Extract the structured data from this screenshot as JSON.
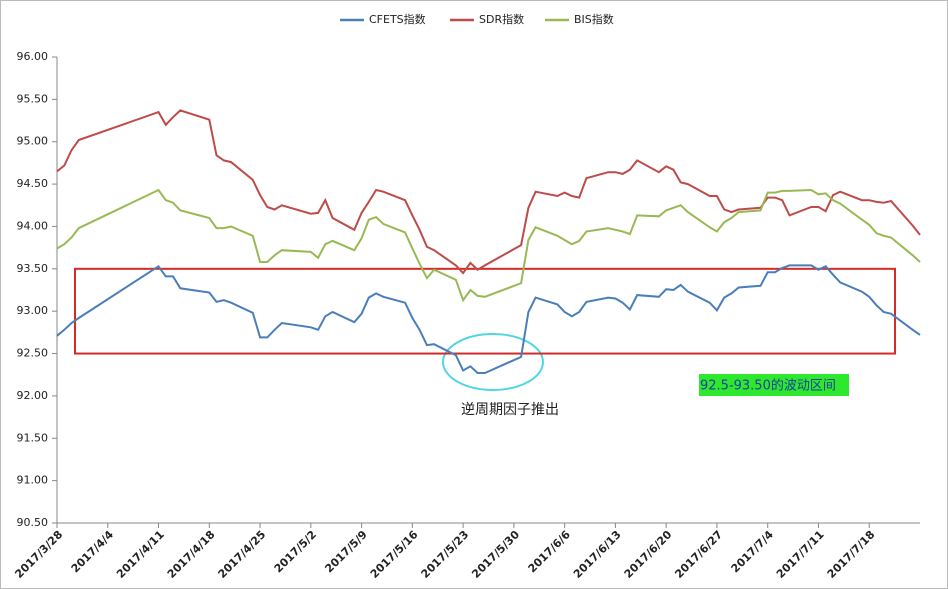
{
  "chart_data": {
    "type": "line",
    "x": [
      "2017/3/28",
      "2017/3/29",
      "2017/3/30",
      "2017/3/31",
      "2017/4/11",
      "2017/4/12",
      "2017/4/13",
      "2017/4/14",
      "2017/4/18",
      "2017/4/19",
      "2017/4/20",
      "2017/4/21",
      "2017/4/24",
      "2017/4/25",
      "2017/4/26",
      "2017/4/27",
      "2017/4/28",
      "2017/5/2",
      "2017/5/3",
      "2017/5/4",
      "2017/5/5",
      "2017/5/8",
      "2017/5/9",
      "2017/5/10",
      "2017/5/11",
      "2017/5/12",
      "2017/5/15",
      "2017/5/16",
      "2017/5/17",
      "2017/5/18",
      "2017/5/19",
      "2017/5/22",
      "2017/5/23",
      "2017/5/24",
      "2017/5/25",
      "2017/5/26",
      "2017/5/31",
      "2017/6/1",
      "2017/6/2",
      "2017/6/5",
      "2017/6/6",
      "2017/6/7",
      "2017/6/8",
      "2017/6/9",
      "2017/6/12",
      "2017/6/13",
      "2017/6/14",
      "2017/6/15",
      "2017/6/16",
      "2017/6/19",
      "2017/6/20",
      "2017/6/21",
      "2017/6/22",
      "2017/6/23",
      "2017/6/26",
      "2017/6/27",
      "2017/6/28",
      "2017/6/29",
      "2017/6/30",
      "2017/7/3",
      "2017/7/4",
      "2017/7/5",
      "2017/7/6",
      "2017/7/7",
      "2017/7/10",
      "2017/7/11",
      "2017/7/12",
      "2017/7/13",
      "2017/7/14",
      "2017/7/17",
      "2017/7/18",
      "2017/7/19",
      "2017/7/20",
      "2017/7/21",
      "2017/7/24",
      "2017/7/25"
    ],
    "series": [
      {
        "name": "CFETS指数",
        "color": "#4a7ebb",
        "values": [
          92.71,
          92.78,
          92.86,
          92.92,
          93.53,
          93.41,
          93.41,
          93.27,
          93.22,
          93.11,
          93.13,
          93.1,
          92.98,
          92.69,
          92.69,
          92.78,
          92.86,
          92.81,
          92.78,
          92.94,
          92.99,
          92.87,
          92.97,
          93.16,
          93.21,
          93.17,
          93.1,
          92.92,
          92.78,
          92.6,
          92.61,
          92.48,
          92.3,
          92.35,
          92.27,
          92.27,
          92.46,
          92.99,
          93.16,
          93.08,
          92.99,
          92.94,
          92.99,
          93.11,
          93.16,
          93.15,
          93.1,
          93.02,
          93.19,
          93.17,
          93.26,
          93.25,
          93.31,
          93.23,
          93.1,
          93.01,
          93.16,
          93.21,
          93.28,
          93.3,
          93.46,
          93.46,
          93.51,
          93.54,
          93.54,
          93.49,
          93.53,
          93.43,
          93.34,
          93.23,
          93.17,
          93.07,
          92.99,
          92.97,
          92.78,
          92.72
        ]
      },
      {
        "name": "SDR指数",
        "color": "#be4b48",
        "values": [
          94.65,
          94.72,
          94.9,
          95.02,
          95.35,
          95.2,
          95.29,
          95.37,
          95.26,
          94.84,
          94.78,
          94.76,
          94.55,
          94.37,
          94.23,
          94.2,
          94.25,
          94.15,
          94.16,
          94.31,
          94.1,
          93.96,
          94.16,
          94.29,
          94.43,
          94.41,
          94.31,
          94.13,
          93.96,
          93.76,
          93.72,
          93.54,
          93.45,
          93.57,
          93.49,
          93.54,
          93.78,
          94.22,
          94.41,
          94.36,
          94.4,
          94.36,
          94.34,
          94.57,
          94.64,
          94.64,
          94.62,
          94.67,
          94.78,
          94.64,
          94.71,
          94.67,
          94.52,
          94.5,
          94.36,
          94.36,
          94.2,
          94.17,
          94.2,
          94.22,
          94.34,
          94.34,
          94.31,
          94.13,
          94.23,
          94.23,
          94.18,
          94.37,
          94.41,
          94.31,
          94.31,
          94.29,
          94.28,
          94.3,
          94.01,
          93.9
        ]
      },
      {
        "name": "BIS指数",
        "color": "#98b954",
        "values": [
          93.74,
          93.79,
          93.87,
          93.98,
          94.43,
          94.31,
          94.28,
          94.19,
          94.1,
          93.98,
          93.98,
          94.0,
          93.89,
          93.58,
          93.58,
          93.66,
          93.72,
          93.7,
          93.63,
          93.79,
          93.83,
          93.72,
          93.86,
          94.08,
          94.11,
          94.03,
          93.93,
          93.74,
          93.56,
          93.39,
          93.49,
          93.37,
          93.13,
          93.25,
          93.18,
          93.17,
          93.33,
          93.84,
          93.99,
          93.89,
          93.84,
          93.79,
          93.83,
          93.94,
          93.98,
          93.96,
          93.94,
          93.91,
          94.13,
          94.12,
          94.19,
          94.22,
          94.25,
          94.17,
          93.99,
          93.94,
          94.05,
          94.1,
          94.17,
          94.19,
          94.4,
          94.4,
          94.42,
          94.42,
          94.43,
          94.38,
          94.39,
          94.31,
          94.27,
          94.08,
          94.02,
          93.92,
          93.89,
          93.87,
          93.66,
          93.58
        ]
      }
    ],
    "xlim": [
      "2017/3/28",
      "2017/7/25"
    ],
    "xticks": [
      "2017/3/28",
      "2017/4/4",
      "2017/4/11",
      "2017/4/18",
      "2017/4/25",
      "2017/5/2",
      "2017/5/9",
      "2017/5/16",
      "2017/5/23",
      "2017/5/30",
      "2017/6/6",
      "2017/6/13",
      "2017/6/20",
      "2017/6/27",
      "2017/7/4",
      "2017/7/11",
      "2017/7/18"
    ],
    "ylim": [
      90.5,
      96
    ],
    "yticks": [
      {
        "value": 90.5,
        "label": "90.50"
      },
      {
        "value": 91,
        "label": "91.00"
      },
      {
        "value": 91.5,
        "label": "91.50"
      },
      {
        "value": 92,
        "label": "92.00"
      },
      {
        "value": 92.5,
        "label": "92.50"
      },
      {
        "value": 93,
        "label": "93.00"
      },
      {
        "value": 93.5,
        "label": "93.50"
      },
      {
        "value": 94,
        "label": "94.00"
      },
      {
        "value": 94.5,
        "label": "94.50"
      },
      {
        "value": 95,
        "label": "95.00"
      },
      {
        "value": 95.5,
        "label": "95.50"
      },
      {
        "value": 96,
        "label": "96.00"
      }
    ],
    "grid": false,
    "legend": "top",
    "band": {
      "range": [
        92.5,
        93.5
      ],
      "label": "92.5-93.50的波动区间"
    },
    "annotation": "逆周期因子推出"
  }
}
